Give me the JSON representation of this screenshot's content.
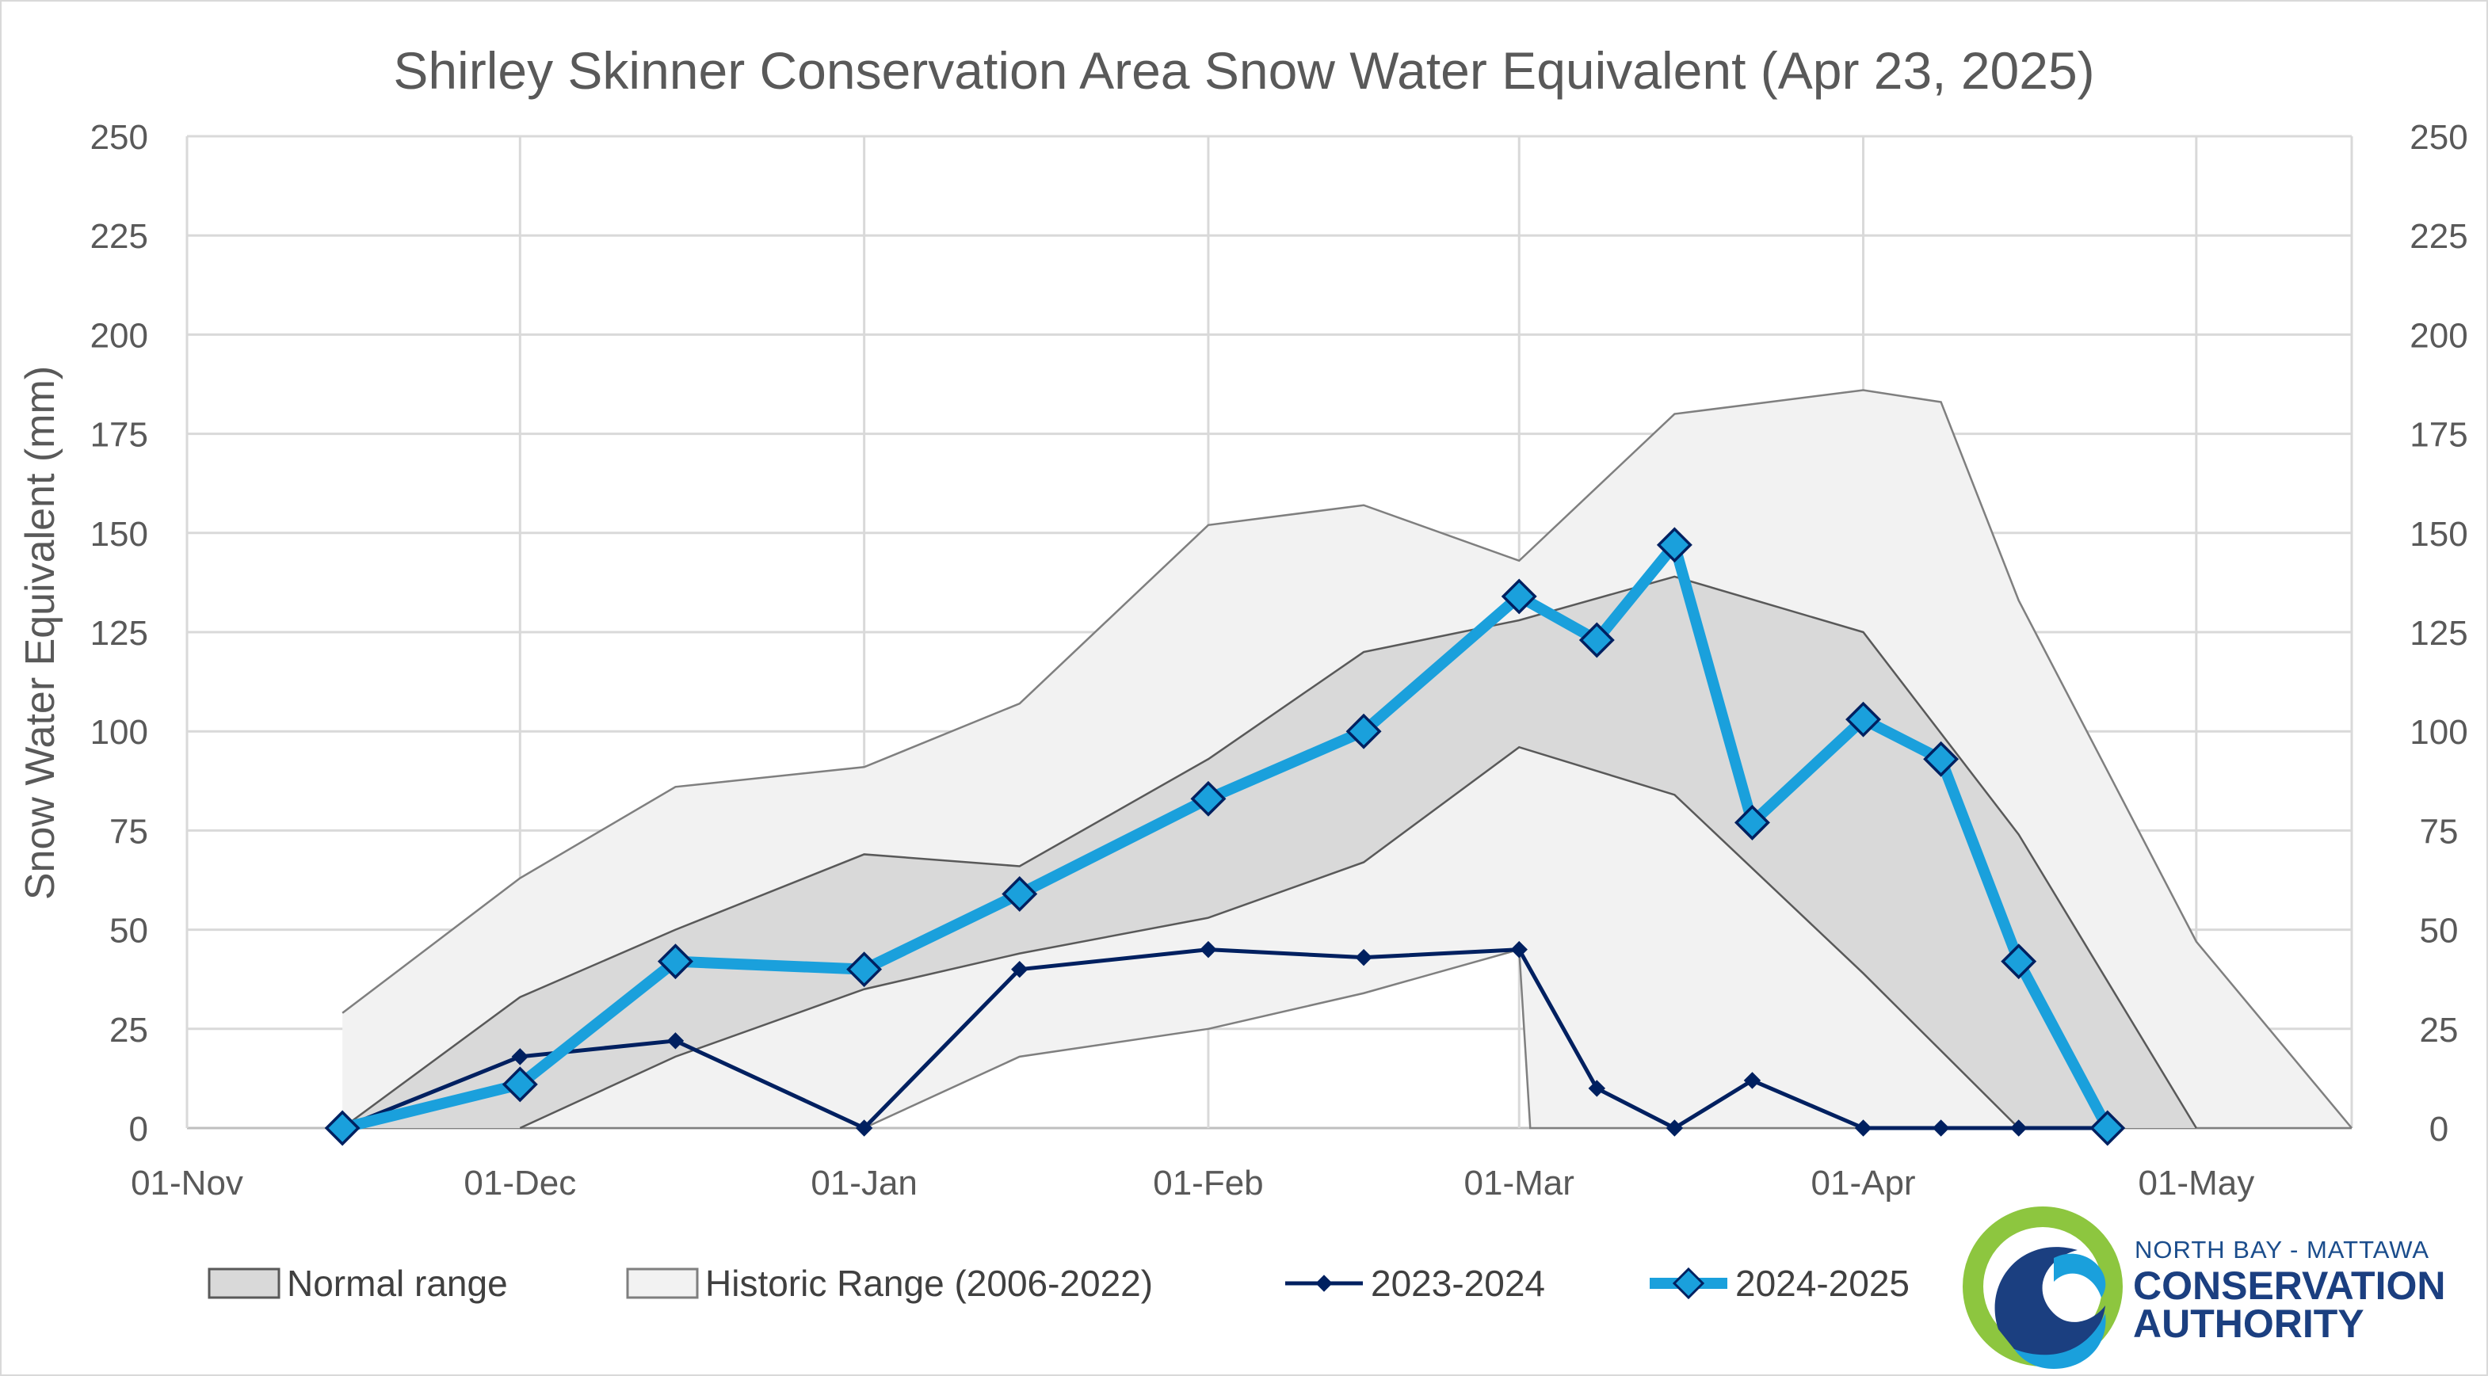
{
  "chart_data": {
    "type": "line",
    "title": "Shirley Skinner Conservation Area Snow Water Equivalent (Apr 23, 2025)",
    "ylabel": "Snow Water Equivalent (mm)",
    "xlabel": "",
    "ylim": [
      0,
      250
    ],
    "yticks": [
      0,
      25,
      50,
      75,
      100,
      125,
      150,
      175,
      200,
      225,
      250
    ],
    "xlim": [
      "2024-11-01",
      "2025-05-15"
    ],
    "xticks": [
      {
        "date": "2024-11-01",
        "label": "01-Nov"
      },
      {
        "date": "2024-12-01",
        "label": "01-Dec"
      },
      {
        "date": "2025-01-01",
        "label": "01-Jan"
      },
      {
        "date": "2025-02-01",
        "label": "01-Feb"
      },
      {
        "date": "2025-03-01",
        "label": "01-Mar"
      },
      {
        "date": "2025-04-01",
        "label": "01-Apr"
      },
      {
        "date": "2025-05-01",
        "label": "01-May"
      }
    ],
    "grid": true,
    "legend_position": "bottom",
    "bands": [
      {
        "name": "Historic Range (2006-2022)",
        "color": "#f2f2f2",
        "edge_color": "#7f7f7f",
        "upper": [
          {
            "x": "2024-11-15",
            "y": 29
          },
          {
            "x": "2024-12-01",
            "y": 63
          },
          {
            "x": "2024-12-15",
            "y": 86
          },
          {
            "x": "2025-01-01",
            "y": 91
          },
          {
            "x": "2025-01-15",
            "y": 107
          },
          {
            "x": "2025-02-01",
            "y": 152
          },
          {
            "x": "2025-02-15",
            "y": 157
          },
          {
            "x": "2025-03-01",
            "y": 143
          },
          {
            "x": "2025-03-15",
            "y": 180
          },
          {
            "x": "2025-04-01",
            "y": 186
          },
          {
            "x": "2025-04-08",
            "y": 183
          },
          {
            "x": "2025-04-15",
            "y": 133
          },
          {
            "x": "2025-05-01",
            "y": 47
          },
          {
            "x": "2025-05-15",
            "y": 0
          }
        ],
        "lower": [
          {
            "x": "2024-11-15",
            "y": 0
          },
          {
            "x": "2025-01-01",
            "y": 0
          },
          {
            "x": "2025-01-15",
            "y": 18
          },
          {
            "x": "2025-02-01",
            "y": 25
          },
          {
            "x": "2025-02-15",
            "y": 34
          },
          {
            "x": "2025-03-01",
            "y": 45
          },
          {
            "x": "2025-03-02",
            "y": 0
          },
          {
            "x": "2025-05-15",
            "y": 0
          }
        ]
      },
      {
        "name": "Normal range",
        "color": "#d9d9d9",
        "edge_color": "#595959",
        "upper": [
          {
            "x": "2024-11-15",
            "y": 0
          },
          {
            "x": "2024-12-01",
            "y": 33
          },
          {
            "x": "2024-12-15",
            "y": 50
          },
          {
            "x": "2025-01-01",
            "y": 69
          },
          {
            "x": "2025-01-15",
            "y": 66
          },
          {
            "x": "2025-02-01",
            "y": 93
          },
          {
            "x": "2025-02-15",
            "y": 120
          },
          {
            "x": "2025-03-01",
            "y": 128
          },
          {
            "x": "2025-03-15",
            "y": 139
          },
          {
            "x": "2025-04-01",
            "y": 125
          },
          {
            "x": "2025-04-15",
            "y": 74
          },
          {
            "x": "2025-05-01",
            "y": 0
          }
        ],
        "lower": [
          {
            "x": "2024-12-01",
            "y": 0
          },
          {
            "x": "2024-12-15",
            "y": 18
          },
          {
            "x": "2025-01-01",
            "y": 35
          },
          {
            "x": "2025-01-15",
            "y": 44
          },
          {
            "x": "2025-02-01",
            "y": 53
          },
          {
            "x": "2025-02-15",
            "y": 67
          },
          {
            "x": "2025-03-01",
            "y": 96
          },
          {
            "x": "2025-03-15",
            "y": 84
          },
          {
            "x": "2025-04-01",
            "y": 39
          },
          {
            "x": "2025-04-15",
            "y": 0
          }
        ]
      }
    ],
    "series": [
      {
        "name": "2023-2024",
        "color": "#002060",
        "points": [
          {
            "x": "2024-11-15",
            "y": 0
          },
          {
            "x": "2024-12-01",
            "y": 18
          },
          {
            "x": "2024-12-15",
            "y": 22
          },
          {
            "x": "2025-01-01",
            "y": 0
          },
          {
            "x": "2025-01-15",
            "y": 40
          },
          {
            "x": "2025-02-01",
            "y": 45
          },
          {
            "x": "2025-02-15",
            "y": 43
          },
          {
            "x": "2025-03-01",
            "y": 45
          },
          {
            "x": "2025-03-08",
            "y": 10
          },
          {
            "x": "2025-03-15",
            "y": 0
          },
          {
            "x": "2025-03-22",
            "y": 12
          },
          {
            "x": "2025-04-01",
            "y": 0
          },
          {
            "x": "2025-04-08",
            "y": 0
          },
          {
            "x": "2025-04-15",
            "y": 0
          },
          {
            "x": "2025-04-23",
            "y": 0
          }
        ]
      },
      {
        "name": "2024-2025",
        "color": "#1aa0dc",
        "points": [
          {
            "x": "2024-11-15",
            "y": 0
          },
          {
            "x": "2024-12-01",
            "y": 11
          },
          {
            "x": "2024-12-15",
            "y": 42
          },
          {
            "x": "2025-01-01",
            "y": 40
          },
          {
            "x": "2025-01-15",
            "y": 59
          },
          {
            "x": "2025-02-01",
            "y": 83
          },
          {
            "x": "2025-02-15",
            "y": 100
          },
          {
            "x": "2025-03-01",
            "y": 134
          },
          {
            "x": "2025-03-08",
            "y": 123
          },
          {
            "x": "2025-03-15",
            "y": 147
          },
          {
            "x": "2025-03-22",
            "y": 77
          },
          {
            "x": "2025-04-01",
            "y": 103
          },
          {
            "x": "2025-04-08",
            "y": 93
          },
          {
            "x": "2025-04-15",
            "y": 42
          },
          {
            "x": "2025-04-23",
            "y": 0
          }
        ]
      }
    ]
  },
  "legend": [
    {
      "label": "Normal range",
      "kind": "band",
      "color": "#d9d9d9",
      "edge": "#595959"
    },
    {
      "label": "Historic Range (2006-2022)",
      "kind": "band",
      "color": "#f2f2f2",
      "edge": "#7f7f7f"
    },
    {
      "label": "2023-2024",
      "kind": "line",
      "color": "#002060"
    },
    {
      "label": "2024-2025",
      "kind": "line",
      "color": "#1aa0dc"
    }
  ],
  "logo": {
    "line1": "NORTH BAY - MATTAWA",
    "line2": "CONSERVATION",
    "line3": "AUTHORITY",
    "colors": {
      "green": "#8dc63f",
      "light_blue": "#1aa0dc",
      "navy": "#1b3f80"
    }
  }
}
